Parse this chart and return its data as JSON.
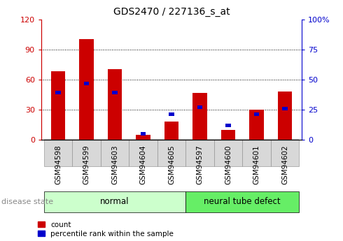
{
  "title": "GDS2470 / 227136_s_at",
  "categories": [
    "GSM94598",
    "GSM94599",
    "GSM94603",
    "GSM94604",
    "GSM94605",
    "GSM94597",
    "GSM94600",
    "GSM94601",
    "GSM94602"
  ],
  "red_values": [
    68,
    100,
    70,
    5,
    18,
    47,
    10,
    30,
    48
  ],
  "blue_values_pct": [
    39,
    47,
    39,
    5,
    21,
    27,
    12,
    21,
    26
  ],
  "groups": [
    {
      "label": "normal",
      "indices": [
        0,
        1,
        2,
        3,
        4
      ],
      "color": "#ccffcc"
    },
    {
      "label": "neural tube defect",
      "indices": [
        5,
        6,
        7,
        8
      ],
      "color": "#66ee66"
    }
  ],
  "ylim_left": [
    0,
    120
  ],
  "ylim_right": [
    0,
    100
  ],
  "yticks_left": [
    0,
    30,
    60,
    90,
    120
  ],
  "yticks_right": [
    0,
    25,
    50,
    75,
    100
  ],
  "ytick_labels_left": [
    "0",
    "30",
    "60",
    "90",
    "120"
  ],
  "ytick_labels_right": [
    "0",
    "25",
    "50",
    "75",
    "100%"
  ],
  "left_axis_color": "#cc0000",
  "right_axis_color": "#0000cc",
  "bar_red_color": "#cc0000",
  "bar_blue_color": "#0000cc",
  "legend_count": "count",
  "legend_pct": "percentile rank within the sample",
  "disease_state_label": "disease state",
  "bar_width": 0.5,
  "grid_color": "black"
}
